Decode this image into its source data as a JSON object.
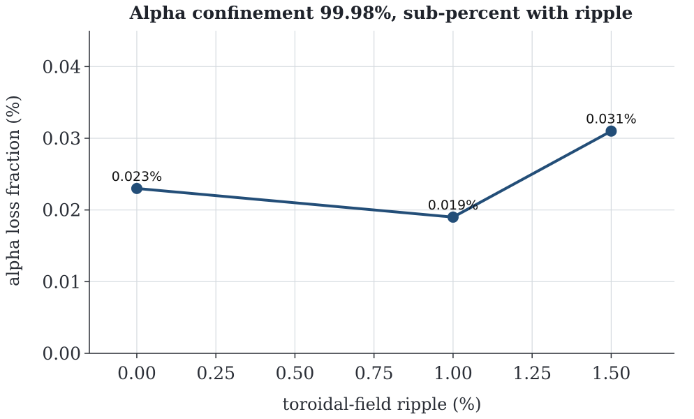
{
  "chart_data": {
    "type": "line",
    "title": "Alpha confinement 99.98%, sub-percent with ripple",
    "xlabel": "toroidal-field ripple (%)",
    "ylabel": "alpha loss fraction (%)",
    "xlim": [
      -0.15,
      1.7
    ],
    "ylim": [
      0,
      0.045
    ],
    "xticks": [
      0.0,
      0.25,
      0.5,
      0.75,
      1.0,
      1.25,
      1.5
    ],
    "xtick_labels": [
      "0.00",
      "0.25",
      "0.50",
      "0.75",
      "1.00",
      "1.25",
      "1.50"
    ],
    "yticks": [
      0.0,
      0.01,
      0.02,
      0.03,
      0.04
    ],
    "ytick_labels": [
      "0.00",
      "0.01",
      "0.02",
      "0.03",
      "0.04"
    ],
    "grid": true,
    "series": [
      {
        "color": "#234e78",
        "x": [
          0.0,
          1.0,
          1.5
        ],
        "y": [
          0.023,
          0.019,
          0.031
        ],
        "labels": [
          "0.023%",
          "0.019%",
          "0.031%"
        ]
      }
    ]
  }
}
